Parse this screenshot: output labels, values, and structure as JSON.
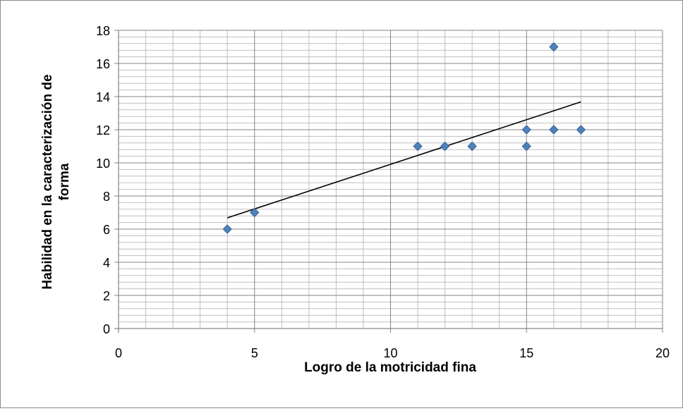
{
  "chart_data": {
    "type": "scatter",
    "title": "",
    "xlabel": "Logro de la motricidad fina",
    "ylabel_lines": [
      "Habilidad en la caracterización de",
      "forma"
    ],
    "xlim": [
      0,
      20
    ],
    "ylim": [
      0,
      18
    ],
    "x_ticks": [
      "0",
      "5",
      "10",
      "15",
      "20"
    ],
    "y_ticks": [
      "0",
      "2",
      "4",
      "6",
      "8",
      "10",
      "12",
      "14",
      "16",
      "18"
    ],
    "x_major_step": 5,
    "x_minor_step": 1,
    "y_major_step": 2,
    "y_minor_step": 0.4,
    "grid": true,
    "marker": "diamond",
    "series": [
      {
        "points": [
          {
            "x": 4,
            "y": 6
          },
          {
            "x": 5,
            "y": 7
          },
          {
            "x": 11,
            "y": 11
          },
          {
            "x": 12,
            "y": 11
          },
          {
            "x": 13,
            "y": 11
          },
          {
            "x": 15,
            "y": 11
          },
          {
            "x": 15,
            "y": 12
          },
          {
            "x": 16,
            "y": 12
          },
          {
            "x": 16,
            "y": 17
          },
          {
            "x": 17,
            "y": 12
          }
        ]
      }
    ],
    "trendline": {
      "type": "linear",
      "points": [
        {
          "x": 4,
          "y": 6.68
        },
        {
          "x": 17,
          "y": 13.68
        }
      ]
    },
    "colors": {
      "marker_fill": "#4f81bd",
      "marker_stroke": "#3a6496",
      "major_grid": "#868686",
      "minor_grid": "#bfbfbf",
      "trendline": "#000000"
    }
  }
}
